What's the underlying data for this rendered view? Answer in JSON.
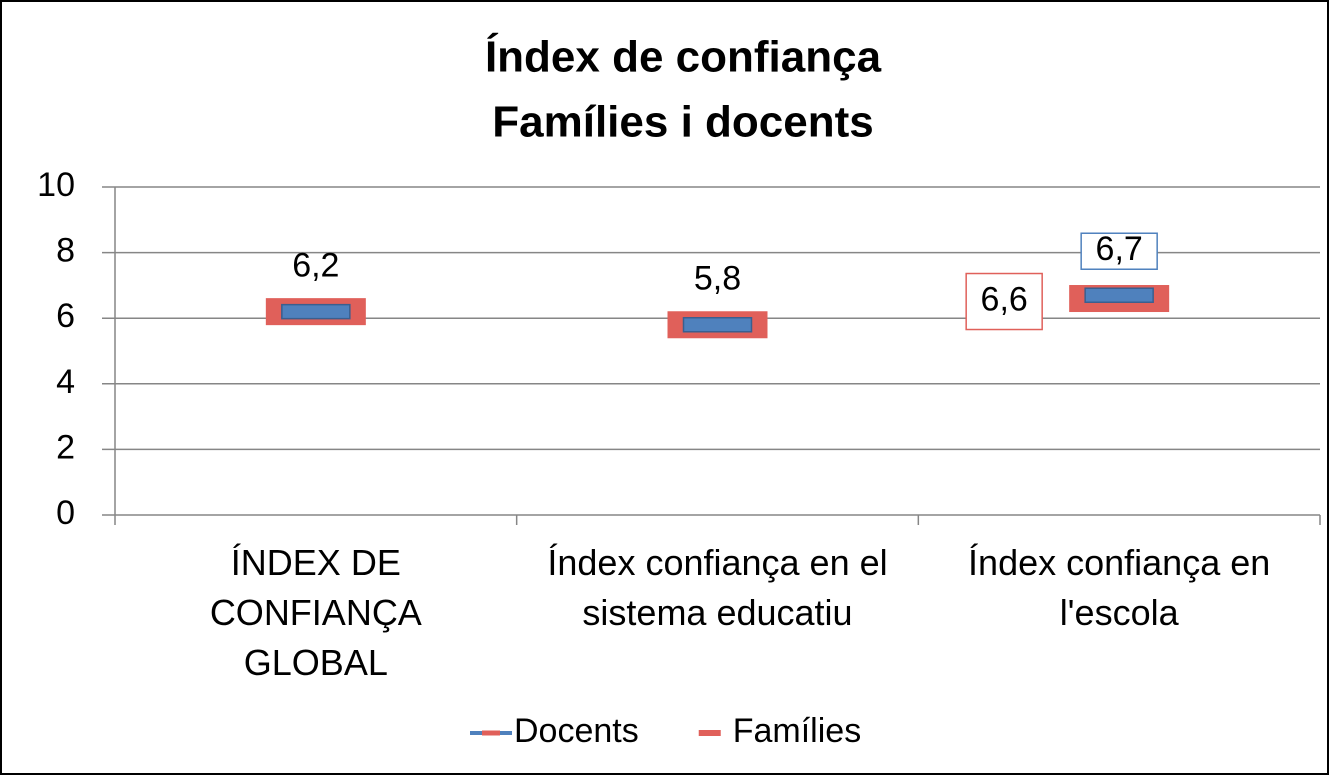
{
  "chart_data": {
    "type": "line",
    "show_lines": false,
    "title": [
      "Índex de confiança",
      "Famílies i docents"
    ],
    "categories": [
      "ÍNDEX DE CONFIANÇA GLOBAL",
      "Índex confiança en el sistema educatiu",
      "Índex confiança en l'escola"
    ],
    "series": [
      {
        "name": "Docents",
        "color": "#4f81bd",
        "values": [
          6.2,
          5.8,
          6.7
        ],
        "value_labels": [
          "6,2",
          "5,8",
          "6,7"
        ]
      },
      {
        "name": "Famílies",
        "color": "#e0605a",
        "values": [
          6.2,
          5.8,
          6.6
        ],
        "value_labels": [
          null,
          null,
          "6,6"
        ]
      }
    ],
    "ylim": [
      0,
      10
    ],
    "yticks": [
      0,
      2,
      4,
      6,
      8,
      10
    ],
    "grid": true,
    "legend": "bottom"
  }
}
